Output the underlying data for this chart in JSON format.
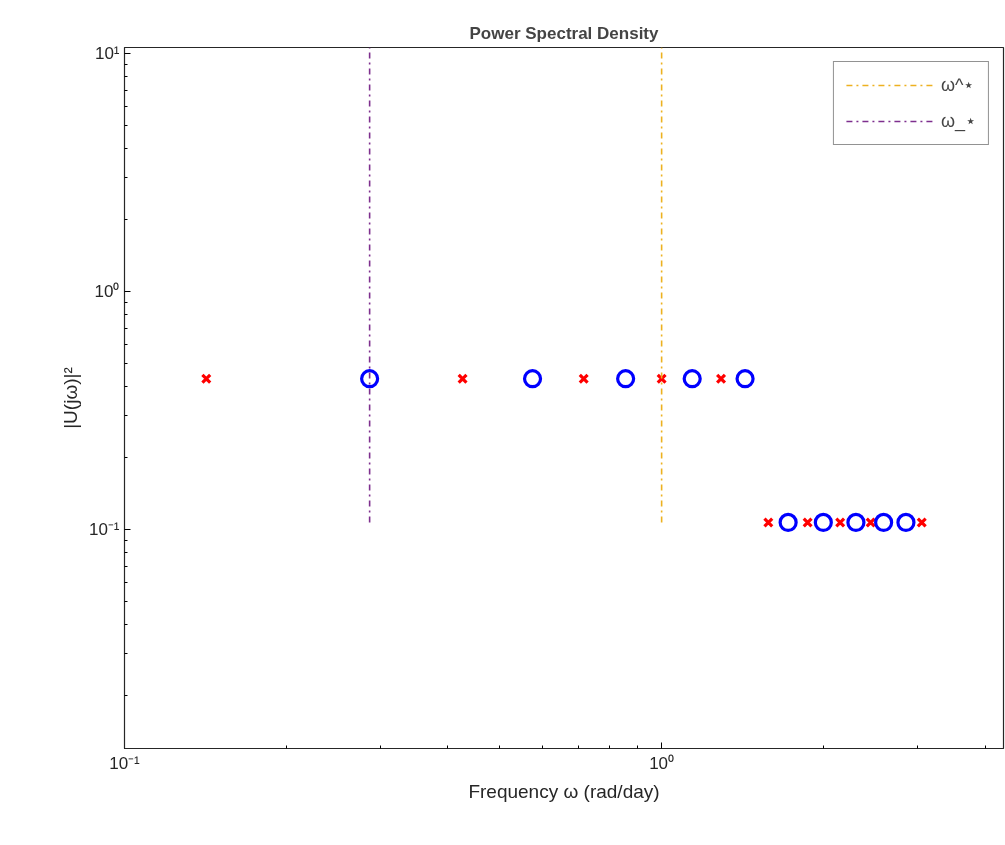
{
  "chart_data": {
    "type": "scatter",
    "title": "Power Spectral Density",
    "xlabel": "Frequency ω (rad/day)",
    "ylabel": "|U(jω)|²",
    "log": "xy",
    "grid": false,
    "legend": "top right",
    "xlim": [
      0.1,
      4.33
    ],
    "ylim": [
      0.012,
      10.6
    ],
    "xticks": [
      {
        "value": 0.1,
        "label": "10⁻¹"
      },
      {
        "value": 1,
        "label": "10⁰"
      }
    ],
    "yticks": [
      {
        "value": 0.1,
        "label": "10⁻¹"
      },
      {
        "value": 1,
        "label": "10⁰"
      },
      {
        "value": 10,
        "label": "10¹"
      }
    ],
    "series": [
      {
        "marker": "cross",
        "color": "#ff0000",
        "x": [
          0.142,
          0.426,
          0.716,
          1.0,
          1.29,
          1.58,
          1.87,
          2.15,
          2.45,
          3.05
        ],
        "values": [
          0.43,
          0.43,
          0.43,
          0.43,
          0.43,
          0.107,
          0.107,
          0.107,
          0.107,
          0.107
        ]
      },
      {
        "marker": "circle",
        "color": "#0000ff",
        "x": [
          0.286,
          0.575,
          0.857,
          1.14,
          1.43,
          1.72,
          2.0,
          2.3,
          2.59,
          2.85
        ],
        "values": [
          0.43,
          0.43,
          0.43,
          0.43,
          0.43,
          0.107,
          0.107,
          0.107,
          0.107,
          0.107
        ]
      },
      {
        "type": "line",
        "name": "ω^⋆",
        "color": "#edb120",
        "line_style": "dashdot",
        "x": [
          1.0,
          1.0
        ],
        "values": [
          0.107,
          10.6
        ]
      },
      {
        "type": "line",
        "name": "ω_⋆",
        "color": "#7e2f8e",
        "line_style": "dashdot",
        "x": [
          0.286,
          0.286
        ],
        "values": [
          0.107,
          10.6
        ]
      }
    ]
  }
}
